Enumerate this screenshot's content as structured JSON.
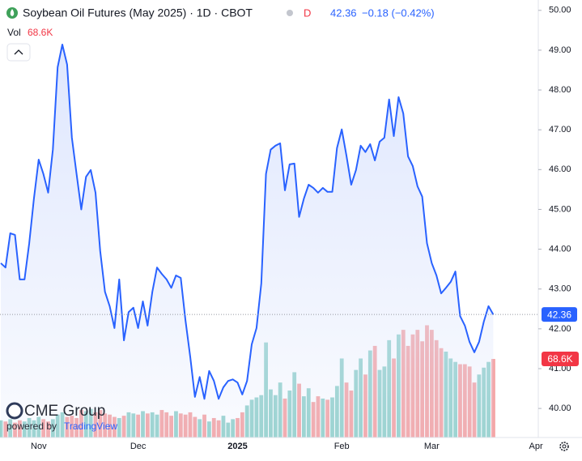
{
  "header": {
    "symbol_title": "Soybean Oil Futures (May 2025) · 1D · CBOT",
    "flag": "D",
    "change": "−0.18 (−0.42%)",
    "vol_label": "Vol"
  },
  "watermark": {
    "brand": "CME Group",
    "powered": "powered by",
    "tv": "TradingView"
  },
  "chart_data": {
    "type": "area",
    "categories": [
      null,
      null,
      null,
      null,
      null,
      null,
      null,
      null,
      "Nov",
      null,
      null,
      null,
      null,
      null,
      null,
      null,
      null,
      null,
      null,
      null,
      null,
      null,
      null,
      null,
      null,
      null,
      null,
      null,
      null,
      "Dec",
      null,
      null,
      null,
      null,
      null,
      null,
      null,
      null,
      null,
      null,
      null,
      null,
      null,
      null,
      null,
      null,
      null,
      null,
      null,
      null,
      "2025",
      null,
      null,
      null,
      null,
      null,
      null,
      null,
      null,
      null,
      null,
      null,
      null,
      null,
      null,
      null,
      null,
      null,
      null,
      null,
      null,
      null,
      "Feb",
      null,
      null,
      null,
      null,
      null,
      null,
      null,
      null,
      null,
      null,
      null,
      null,
      null,
      null,
      null,
      null,
      null,
      null,
      "Mar",
      null,
      null,
      null,
      null,
      null,
      null,
      null,
      null,
      null,
      null,
      null,
      null,
      null,
      null,
      null,
      null,
      null,
      null,
      null,
      null,
      null,
      "Apr"
    ],
    "values": [
      43.65,
      43.54,
      44.4,
      44.36,
      43.24,
      43.24,
      44.15,
      45.27,
      46.25,
      45.89,
      45.42,
      46.5,
      48.57,
      49.14,
      48.64,
      46.8,
      45.89,
      45.0,
      45.82,
      45.99,
      45.42,
      43.95,
      42.93,
      42.57,
      42.02,
      43.24,
      41.71,
      42.42,
      42.53,
      42.02,
      42.69,
      42.08,
      42.93,
      43.54,
      43.38,
      43.24,
      43.03,
      43.34,
      43.28,
      42.22,
      41.3,
      40.29,
      40.79,
      40.24,
      40.94,
      40.69,
      40.24,
      40.53,
      40.69,
      40.73,
      40.65,
      40.35,
      40.69,
      41.61,
      42.02,
      43.14,
      45.89,
      46.5,
      46.6,
      46.66,
      45.48,
      46.13,
      46.15,
      44.81,
      45.27,
      45.62,
      45.54,
      45.42,
      45.54,
      45.44,
      45.44,
      46.54,
      47.01,
      46.35,
      45.62,
      45.99,
      46.6,
      46.44,
      46.64,
      46.23,
      46.7,
      46.8,
      47.76,
      46.84,
      47.82,
      47.41,
      46.33,
      46.09,
      45.58,
      45.32,
      44.15,
      43.65,
      43.34,
      42.89,
      43.03,
      43.18,
      43.44,
      42.32,
      42.08,
      41.67,
      41.41,
      41.67,
      42.18,
      42.57,
      42.36,
      null,
      null,
      null,
      null,
      null,
      null,
      null,
      null,
      null
    ],
    "color": "#2962ff",
    "fill": "#dbe4fd",
    "volume": {
      "values": [
        15000,
        14000,
        16000,
        13000,
        15000,
        14000,
        17000,
        15000,
        18000,
        16000,
        14000,
        16000,
        20000,
        22000,
        18000,
        19000,
        17000,
        24000,
        23000,
        25000,
        22000,
        24000,
        21000,
        20000,
        18000,
        17000,
        19000,
        22000,
        21000,
        20000,
        23000,
        21000,
        22000,
        20000,
        24000,
        22000,
        19000,
        23000,
        21000,
        20000,
        22000,
        18000,
        16000,
        20000,
        14000,
        17000,
        15000,
        19000,
        13000,
        16000,
        17000,
        22000,
        28000,
        33000,
        35000,
        37000,
        83000,
        42000,
        37000,
        48000,
        34000,
        41000,
        57000,
        47000,
        36000,
        43000,
        31000,
        36000,
        34000,
        33000,
        35000,
        45000,
        69000,
        48000,
        41000,
        59000,
        69000,
        55000,
        76000,
        80000,
        59000,
        62000,
        85000,
        69000,
        90000,
        94000,
        80000,
        90000,
        94000,
        84000,
        98000,
        94000,
        85000,
        78000,
        75000,
        69000,
        66000,
        64000,
        64000,
        62000,
        48000,
        55000,
        61000,
        66000,
        68600,
        null,
        null,
        null,
        null,
        null,
        null,
        null,
        null,
        null
      ],
      "value_labels": [
        null,
        null,
        null,
        null,
        null,
        null,
        null,
        null,
        null,
        null,
        null,
        null,
        null,
        null,
        null,
        null,
        null,
        null,
        null,
        null,
        null,
        null,
        null,
        null,
        null,
        null,
        null,
        null,
        null,
        null,
        null,
        null,
        null,
        null,
        null,
        null,
        null,
        null,
        null,
        null,
        null,
        null,
        null,
        null,
        null,
        null,
        null,
        null,
        null,
        null,
        null,
        null,
        null,
        null,
        null,
        null,
        null,
        null,
        null,
        null,
        null,
        null,
        null,
        null,
        null,
        null,
        null,
        null,
        null,
        null,
        null,
        null,
        null,
        null,
        null,
        null,
        null,
        null,
        null,
        null,
        null,
        null,
        null,
        null,
        null,
        null,
        null,
        null,
        null,
        null,
        null,
        null,
        null,
        null,
        null,
        null,
        null,
        null,
        null,
        null,
        null,
        null,
        null,
        null,
        "68.6K",
        null,
        null,
        null,
        null,
        null,
        null,
        null,
        null,
        null
      ],
      "up_color": "#92d1ca",
      "down_color": "#f5a3a3",
      "tag_color": "#f23645",
      "vlim": [
        0,
        382000
      ]
    },
    "ylim": [
      39.27,
      50.26
    ],
    "yticks": [
      {
        "value": 40,
        "label": "40.00"
      },
      {
        "value": 41,
        "label": "41.00"
      },
      {
        "value": 42,
        "label": "42.00"
      },
      {
        "value": 43,
        "label": "43.00"
      },
      {
        "value": 44,
        "label": "44.00"
      },
      {
        "value": 45,
        "label": "45.00"
      },
      {
        "value": 46,
        "label": "46.00"
      },
      {
        "value": 47,
        "label": "47.00"
      },
      {
        "value": 48,
        "label": "48.00"
      },
      {
        "value": 49,
        "label": "49.00"
      },
      {
        "value": 50,
        "label": "50.00"
      }
    ],
    "grid": false
  }
}
